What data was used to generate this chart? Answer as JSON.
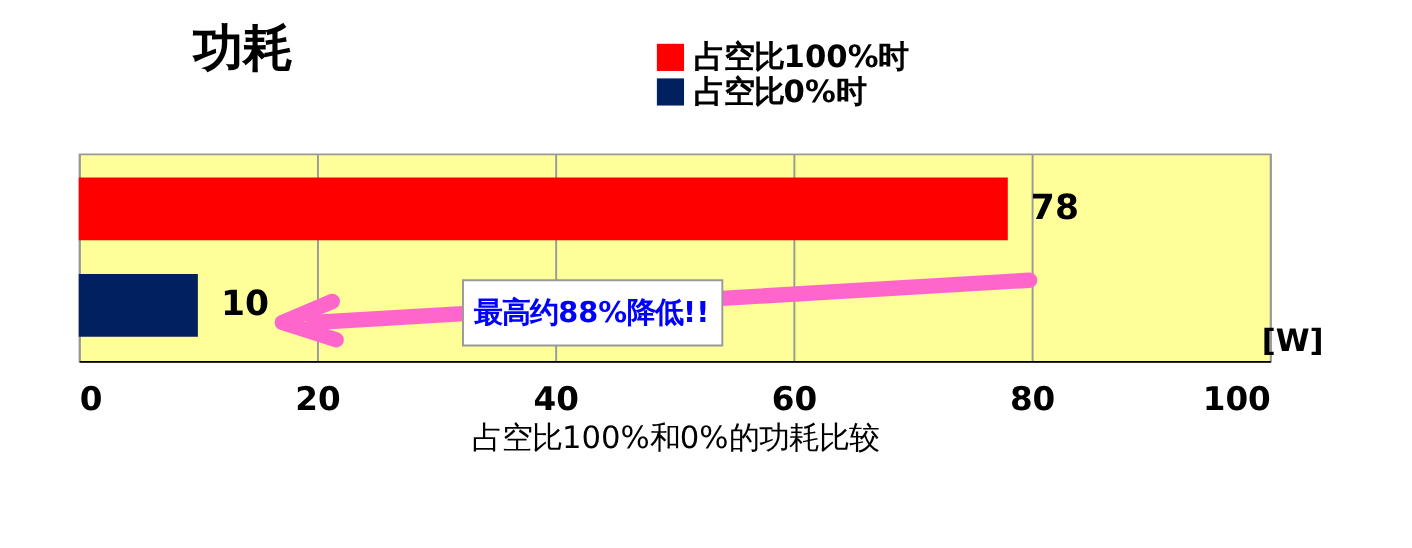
{
  "chart_data": {
    "type": "bar",
    "orientation": "horizontal",
    "title": "功耗",
    "xlabel": "占空比100%和0%的功耗比较",
    "categories": [
      null,
      null
    ],
    "series": [
      {
        "name": "占空比100%时",
        "color": "#ff0000",
        "values": [
          78,
          null
        ]
      },
      {
        "name": "占空比0%时",
        "color": "#002060",
        "values": [
          null,
          10
        ]
      }
    ],
    "xlim": [
      0,
      100
    ],
    "xticks": [
      0,
      20,
      40,
      60,
      80,
      100
    ],
    "grid": "x",
    "legend": "top",
    "data_labels": true,
    "annotations": [
      "最高约88%降低!!",
      "[W]"
    ]
  }
}
